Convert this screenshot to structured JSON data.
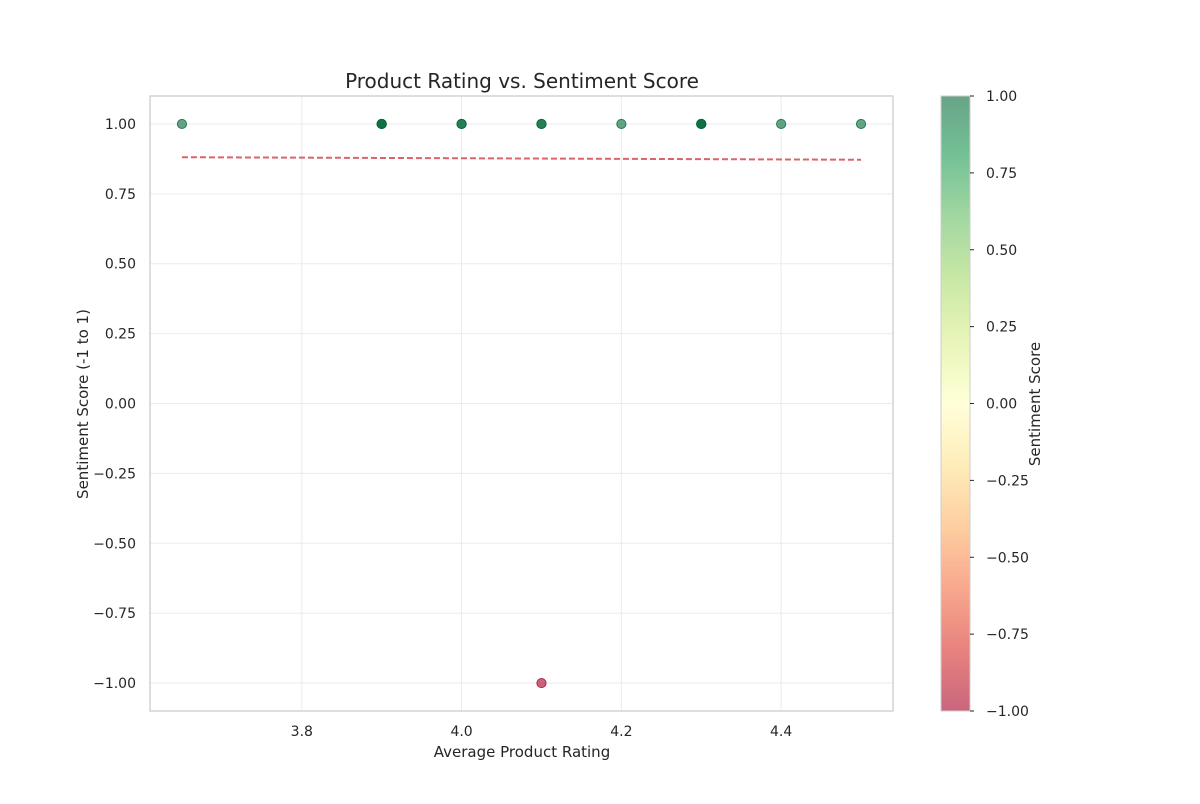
{
  "chart_data": {
    "type": "scatter",
    "title": "Product Rating vs. Sentiment Score",
    "xlabel": "Average Product Rating",
    "ylabel": "Sentiment Score (-1 to 1)",
    "xlim": [
      3.61,
      4.54
    ],
    "ylim": [
      -1.1,
      1.1
    ],
    "xticks": [
      3.8,
      4.0,
      4.2,
      4.4
    ],
    "xtick_labels": [
      "3.8",
      "4.0",
      "4.2",
      "4.4"
    ],
    "yticks": [
      1.0,
      0.75,
      0.5,
      0.25,
      0.0,
      -0.25,
      -0.5,
      -0.75,
      -1.0
    ],
    "ytick_labels": [
      "1.00",
      "0.75",
      "0.50",
      "0.25",
      "0.00",
      "−0.25",
      "−0.50",
      "−0.75",
      "−1.00"
    ],
    "grid": true,
    "points": [
      {
        "x": 3.65,
        "y": 1.0
      },
      {
        "x": 3.9,
        "y": 1.0
      },
      {
        "x": 3.9,
        "y": 1.0
      },
      {
        "x": 3.9,
        "y": 1.0
      },
      {
        "x": 4.0,
        "y": 1.0
      },
      {
        "x": 4.0,
        "y": 1.0
      },
      {
        "x": 4.1,
        "y": 1.0
      },
      {
        "x": 4.1,
        "y": 1.0
      },
      {
        "x": 4.2,
        "y": 1.0
      },
      {
        "x": 4.3,
        "y": 1.0
      },
      {
        "x": 4.3,
        "y": 1.0
      },
      {
        "x": 4.3,
        "y": 1.0
      },
      {
        "x": 4.4,
        "y": 1.0
      },
      {
        "x": 4.5,
        "y": 1.0
      },
      {
        "x": 4.1,
        "y": -1.0
      }
    ],
    "trend_line": {
      "x": [
        3.65,
        4.5
      ],
      "y": [
        0.881,
        0.872
      ],
      "style": "dashed",
      "color": "#d9646a"
    },
    "colorbar": {
      "label": "Sentiment Score",
      "range": [
        -1.0,
        1.0
      ],
      "ticks": [
        1.0,
        0.75,
        0.5,
        0.25,
        0.0,
        -0.25,
        -0.5,
        -0.75,
        -1.0
      ],
      "tick_labels": [
        "1.00",
        "0.75",
        "0.50",
        "0.25",
        "0.00",
        "−0.25",
        "−0.50",
        "−0.75",
        "−1.00"
      ],
      "colormap": "RdYlGn",
      "colormap_stops": [
        "#a50026",
        "#d73027",
        "#f46d43",
        "#fdae61",
        "#fee08b",
        "#ffffbf",
        "#d9ef8b",
        "#a6d96a",
        "#66bd63",
        "#1a9850",
        "#006837"
      ]
    }
  }
}
